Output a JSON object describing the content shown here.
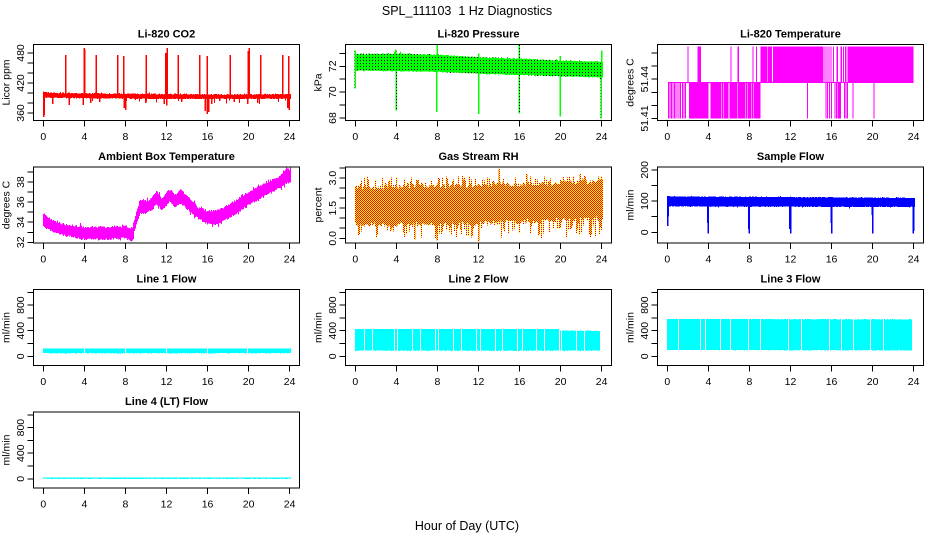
{
  "page": {
    "title": "SPL_111103  1 Hz Diagnostics",
    "xlabel": "Hour of Day (UTC)"
  },
  "x_axis": {
    "lim": [
      -0.96,
      24.96
    ],
    "ticks": [
      0,
      4,
      8,
      12,
      16,
      20,
      24
    ]
  },
  "chart_data": [
    {
      "id": "li820-co2",
      "type": "line",
      "title": "Li-820 CO2",
      "ylabel": "Licor ppm",
      "color": "#FF0000",
      "ylim": [
        345,
        497
      ],
      "yticks": [
        360,
        380,
        400,
        420,
        440,
        460,
        480
      ],
      "ytick_labels": [
        [
          360,
          "360"
        ],
        [
          420,
          "420"
        ],
        [
          480,
          "480"
        ]
      ],
      "envelope": [
        [
          0,
          392,
          401
        ],
        [
          1,
          391,
          399
        ],
        [
          6,
          390,
          398
        ],
        [
          12,
          389,
          397
        ],
        [
          18,
          389,
          396
        ],
        [
          24,
          389,
          397
        ]
      ],
      "spikes": [
        [
          2.2,
          476
        ],
        [
          4.0,
          490
        ],
        [
          4.05,
          487
        ],
        [
          5.15,
          476
        ],
        [
          7.25,
          476
        ],
        [
          7.85,
          474
        ],
        [
          10.05,
          476
        ],
        [
          11.95,
          480
        ],
        [
          12.05,
          490
        ],
        [
          13.15,
          476
        ],
        [
          15.25,
          476
        ],
        [
          15.95,
          474
        ],
        [
          18.2,
          476
        ],
        [
          19.95,
          484
        ],
        [
          20.05,
          490
        ],
        [
          21.2,
          476
        ],
        [
          23.35,
          476
        ],
        [
          23.9,
          474
        ]
      ],
      "dips": [
        [
          0.05,
          352
        ],
        [
          0.1,
          356
        ],
        [
          0.9,
          378
        ],
        [
          2.5,
          376
        ],
        [
          3.9,
          376
        ],
        [
          4.6,
          380
        ],
        [
          5.5,
          382
        ],
        [
          7.9,
          370
        ],
        [
          8.05,
          366
        ],
        [
          10.0,
          380
        ],
        [
          11.8,
          378
        ],
        [
          12.0,
          375
        ],
        [
          13.5,
          382
        ],
        [
          15.8,
          364
        ],
        [
          15.95,
          358
        ],
        [
          16.1,
          362
        ],
        [
          16.4,
          378
        ],
        [
          17.2,
          384
        ],
        [
          18.6,
          382
        ],
        [
          19.9,
          378
        ],
        [
          20.9,
          380
        ],
        [
          23.8,
          370
        ],
        [
          23.95,
          366
        ]
      ]
    },
    {
      "id": "li820-pressure",
      "type": "line",
      "title": "Li-820 Pressure",
      "ylabel": "kPa",
      "color": "#00FF00",
      "dot_color": "#000000",
      "ylim": [
        67.81,
        73.68
      ],
      "yticks": [
        68,
        69,
        70,
        71,
        72,
        73
      ],
      "ytick_labels": [
        [
          68,
          "68"
        ],
        [
          70,
          "70"
        ],
        [
          72,
          "72"
        ]
      ],
      "envelope": [
        [
          0,
          71.7,
          72.9
        ],
        [
          4,
          71.65,
          72.95
        ],
        [
          8,
          71.6,
          72.85
        ],
        [
          12,
          71.45,
          72.65
        ],
        [
          16,
          71.35,
          72.55
        ],
        [
          20,
          71.25,
          72.4
        ],
        [
          24,
          71.15,
          72.3
        ]
      ],
      "spikes": [
        [
          0.0,
          73.2
        ],
        [
          3.95,
          73.3
        ],
        [
          8.0,
          73.9
        ],
        [
          12.0,
          73.0
        ],
        [
          15.95,
          73.8
        ],
        [
          19.95,
          72.8
        ],
        [
          24.0,
          73.2
        ]
      ],
      "dips": [
        [
          0.0,
          70.3
        ],
        [
          4.0,
          68.6
        ],
        [
          7.95,
          68.45
        ],
        [
          12.0,
          68.3
        ],
        [
          15.95,
          68.35
        ],
        [
          19.95,
          68.1
        ],
        [
          23.95,
          67.95
        ]
      ]
    },
    {
      "id": "li820-temperature",
      "type": "line",
      "title": "Li-820 Temperature",
      "ylabel": "degrees C",
      "color": "#FF00FF",
      "ylim": [
        51.4085,
        51.4665
      ],
      "yticks": [
        51.41,
        51.42,
        51.43,
        51.44,
        51.45,
        51.46
      ],
      "ytick_labels": [
        [
          51.41,
          "51.41"
        ],
        [
          51.44,
          "51.44"
        ]
      ],
      "levels": [
        51.41,
        51.4375,
        51.465
      ],
      "mid_level_span": [
        0.05,
        24.0
      ],
      "lower_fill": [
        [
          2.1,
          4.0
        ],
        [
          4.2,
          5.3
        ],
        [
          5.5,
          5.9
        ],
        [
          6.1,
          6.8
        ],
        [
          7.0,
          7.6
        ],
        [
          7.8,
          8.2
        ],
        [
          8.4,
          9.1
        ]
      ],
      "lower_lines": [
        0.1,
        0.25,
        0.4,
        0.55,
        0.7,
        0.85,
        1.05,
        1.25,
        1.5,
        1.75,
        5.4,
        6.0,
        6.9,
        7.7,
        8.3,
        13.65,
        15.45,
        15.6,
        15.8,
        16.0,
        16.35,
        16.5,
        16.7,
        16.85,
        17.25,
        17.4,
        17.55,
        18.1,
        20.15
      ],
      "upper_fill": [
        [
          10.3,
          15.2
        ],
        [
          17.6,
          24.0
        ]
      ],
      "upper_lines": [
        2.0,
        3.0,
        3.1,
        3.2,
        6.2,
        6.9,
        8.35,
        8.7,
        9.15,
        9.3,
        9.4,
        9.5,
        9.6,
        9.7,
        9.85,
        9.95,
        10.05,
        10.15,
        15.35,
        15.55,
        15.75,
        15.95,
        16.2,
        16.55,
        16.95,
        17.15,
        17.35,
        17.5
      ]
    },
    {
      "id": "ambient-box-temperature",
      "type": "line",
      "title": "Ambient Box Temperature",
      "ylabel": "degrees C",
      "color": "#FF00FF",
      "ylim": [
        31.93,
        39.5
      ],
      "yticks": [
        32,
        33,
        34,
        35,
        36,
        37,
        38,
        39
      ],
      "ytick_labels": [
        [
          32,
          "32"
        ],
        [
          34,
          "34"
        ],
        [
          36,
          "36"
        ],
        [
          38,
          "38"
        ]
      ],
      "envelope": [
        [
          0,
          33.7,
          34.7
        ],
        [
          0.5,
          33.4,
          34.3
        ],
        [
          1,
          33.1,
          34.0
        ],
        [
          2,
          32.8,
          33.7
        ],
        [
          4,
          32.4,
          33.4
        ],
        [
          6,
          32.4,
          33.4
        ],
        [
          8,
          32.5,
          33.5
        ],
        [
          8.6,
          32.2,
          33.3
        ],
        [
          9.0,
          33.8,
          34.8
        ],
        [
          9.4,
          35.0,
          36.2
        ],
        [
          10,
          35.0,
          36.0
        ],
        [
          10.5,
          35.3,
          36.3
        ],
        [
          11,
          35.9,
          37.0
        ],
        [
          11.5,
          35.3,
          36.3
        ],
        [
          12,
          35.8,
          36.9
        ],
        [
          12.3,
          36.1,
          37.2
        ],
        [
          12.8,
          35.6,
          36.6
        ],
        [
          13.3,
          36.0,
          37.2
        ],
        [
          13.8,
          35.6,
          36.7
        ],
        [
          15,
          34.5,
          35.4
        ],
        [
          16,
          33.9,
          35.0
        ],
        [
          17,
          33.9,
          35.1
        ],
        [
          18,
          34.5,
          35.6
        ],
        [
          20,
          35.8,
          36.9
        ],
        [
          22,
          37.0,
          38.0
        ],
        [
          23,
          37.5,
          38.5
        ],
        [
          23.7,
          38.0,
          39.4
        ],
        [
          24,
          38.0,
          39.1
        ]
      ]
    },
    {
      "id": "gas-stream-rh",
      "type": "line",
      "title": "Gas Stream RH",
      "ylabel": "percent",
      "color": "#FF0000",
      "secondary_color": "#FFFF00",
      "ylim": [
        -0.235,
        3.55
      ],
      "yticks": [
        0,
        0.5,
        1,
        1.5,
        2,
        2.5,
        3,
        3.5
      ],
      "ytick_labels": [
        [
          0,
          "0.0"
        ],
        [
          1.5,
          "1.5"
        ],
        [
          3,
          "3.0"
        ]
      ],
      "envelope": [
        [
          0,
          0.8,
          2.4
        ],
        [
          12,
          0.85,
          2.5
        ],
        [
          18,
          1.0,
          2.6
        ],
        [
          24,
          1.1,
          2.7
        ]
      ],
      "extremes": [
        0.0,
        3.1
      ],
      "spikes": [
        [
          14.0,
          3.45
        ],
        [
          16.7,
          3.2
        ],
        [
          21.9,
          3.2
        ]
      ],
      "dips": [
        [
          8.0,
          -0.1
        ],
        [
          12.0,
          -0.15
        ],
        [
          5.8,
          -0.05
        ]
      ]
    },
    {
      "id": "sample-flow",
      "type": "line",
      "title": "Sample Flow",
      "ylabel": "ml/min",
      "color": "#0000FF",
      "ylim": [
        -34,
        209
      ],
      "yticks": [
        0,
        50,
        100,
        150,
        200
      ],
      "ytick_labels": [
        [
          0,
          "0"
        ],
        [
          100,
          "100"
        ],
        [
          200,
          "200"
        ]
      ],
      "envelope": [
        [
          0,
          84,
          114
        ],
        [
          12,
          83,
          112
        ],
        [
          24,
          82,
          109
        ]
      ],
      "spikes": [],
      "dips": [
        [
          0.05,
          20
        ],
        [
          0.1,
          50
        ],
        [
          3.95,
          30
        ],
        [
          4.0,
          -3
        ],
        [
          7.95,
          10
        ],
        [
          8.0,
          -3
        ],
        [
          11.95,
          10
        ],
        [
          12.0,
          -3
        ],
        [
          15.95,
          30
        ],
        [
          16.0,
          -3
        ],
        [
          19.95,
          55
        ],
        [
          20.0,
          -3
        ],
        [
          23.95,
          -3
        ],
        [
          24.0,
          5
        ]
      ]
    },
    {
      "id": "line-1-flow",
      "type": "line",
      "title": "Line 1 Flow",
      "ylabel": "ml/min",
      "color": "#00FFFF",
      "ylim": [
        -144,
        1044
      ],
      "yticks": [
        0,
        200,
        400,
        600,
        800,
        1000
      ],
      "ytick_labels": [
        [
          0,
          "0"
        ],
        [
          400,
          "400"
        ],
        [
          800,
          "800"
        ]
      ],
      "envelope": [
        [
          0,
          50,
          120
        ],
        [
          24,
          50,
          118
        ]
      ],
      "gaps": [
        3.95,
        7.95,
        11.95,
        15.95,
        19.85
      ]
    },
    {
      "id": "line-2-flow",
      "type": "line",
      "title": "Line 2 Flow",
      "ylabel": "ml/min",
      "color": "#00FFFF",
      "ylim": [
        -144,
        1044
      ],
      "yticks": [
        0,
        200,
        400,
        600,
        800,
        1000
      ],
      "ytick_labels": [
        [
          0,
          "0"
        ],
        [
          400,
          "400"
        ],
        [
          800,
          "800"
        ]
      ],
      "envelope": [
        [
          0,
          90,
          425
        ],
        [
          19.75,
          90,
          425
        ],
        [
          19.8,
          90,
          400
        ],
        [
          24,
          90,
          395
        ]
      ],
      "gaps": [
        0.8,
        1.6,
        3.75,
        4.1,
        5.5,
        6.3,
        7.75,
        8.1,
        9.5,
        10.3,
        11.8,
        12.1,
        13.6,
        14.3,
        15.8,
        16.2,
        17.6,
        18.4,
        19.8,
        20.0,
        21.5,
        22.3
      ],
      "end": 23.7
    },
    {
      "id": "line-3-flow",
      "type": "line",
      "title": "Line 3 Flow",
      "ylabel": "ml/min",
      "color": "#00FFFF",
      "ylim": [
        -144,
        1044
      ],
      "yticks": [
        0,
        200,
        400,
        600,
        800,
        1000
      ],
      "ytick_labels": [
        [
          0,
          "0"
        ],
        [
          400,
          "400"
        ],
        [
          800,
          "800"
        ]
      ],
      "envelope": [
        [
          0,
          100,
          580
        ],
        [
          24,
          95,
          575
        ]
      ],
      "gaps": [
        1.0,
        3.15,
        3.7,
        5.1,
        6.1,
        7.85,
        9.0,
        11.75,
        13.0,
        15.8,
        16.95,
        18.1,
        19.7,
        21.0
      ],
      "end": 23.7
    },
    {
      "id": "line-4-lt-flow",
      "type": "line",
      "title": "Line 4 (LT) Flow",
      "ylabel": "ml/min",
      "color": "#00FFFF",
      "ylim": [
        -144,
        1044
      ],
      "yticks": [
        0,
        200,
        400,
        600,
        800,
        1000
      ],
      "ytick_labels": [
        [
          0,
          "0"
        ],
        [
          400,
          "400"
        ],
        [
          800,
          "800"
        ]
      ],
      "envelope": [
        [
          0,
          2,
          18
        ],
        [
          24,
          2,
          18
        ]
      ]
    }
  ]
}
